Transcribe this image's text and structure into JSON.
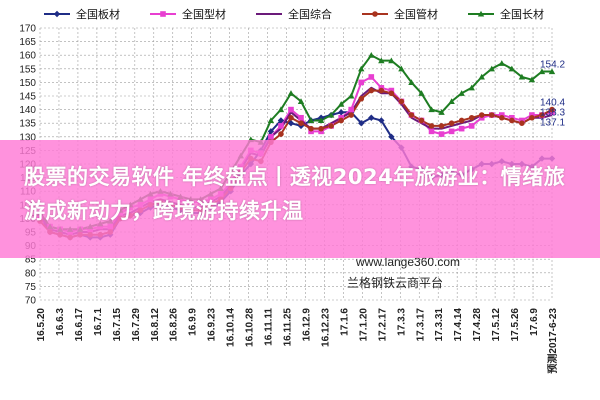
{
  "chart_data": {
    "type": "line",
    "ylim": [
      70,
      170
    ],
    "yticks": [
      70,
      75,
      80,
      85,
      90,
      95,
      100,
      105,
      110,
      115,
      120,
      125,
      130,
      135,
      140,
      145,
      150,
      155,
      160,
      165,
      170
    ],
    "grid": true,
    "legend_position": "top",
    "x_tick_labels": [
      "16.5.20",
      "16.6.3",
      "16.6.17",
      "16.7.1",
      "16.7.15",
      "16.7.29",
      "16.8.12",
      "16.8.26",
      "16.9.9",
      "16.9.23",
      "16.10.14",
      "16.10.28",
      "16.11.11",
      "16.11.25",
      "16.12.9",
      "16.12.23",
      "17.1.6",
      "17.1.20",
      "17.2.17",
      "17.3.3",
      "17.3.17",
      "17.3.31",
      "17.4.14",
      "17.4.28",
      "17.5.12",
      "17.5.26",
      "17.6.9",
      "预测2017-6-23"
    ],
    "end_labels": [
      {
        "series": "全国长材",
        "text": "154.2"
      },
      {
        "series": "全国管材",
        "text": "140.4"
      },
      {
        "series": "全国综合",
        "text": "138.3"
      },
      {
        "series": "全国型材",
        "text": "137.1"
      }
    ],
    "series": [
      {
        "name": "全国板材",
        "color": "#1f2d86",
        "marker": "diamond",
        "values": [
          101,
          95,
          94,
          93,
          94,
          93,
          93,
          94,
          100,
          101,
          102,
          104,
          105,
          104,
          103,
          102,
          102,
          104,
          106,
          110,
          116,
          120,
          125,
          132,
          136,
          135,
          134,
          136,
          137,
          138,
          139,
          139,
          135,
          137,
          136,
          130,
          126,
          119,
          118,
          115,
          116,
          117,
          116,
          118,
          120,
          120,
          121,
          120,
          120,
          119,
          122,
          122
        ]
      },
      {
        "name": "全国型材",
        "color": "#e83fd1",
        "marker": "square",
        "values": [
          100,
          97,
          96,
          95,
          96,
          96,
          97,
          97,
          102,
          104,
          105,
          107,
          109,
          108,
          107,
          106,
          106,
          107,
          109,
          113,
          119,
          125,
          124,
          130,
          134,
          140,
          137,
          132,
          132,
          134,
          137,
          140,
          150,
          152,
          148,
          147,
          143,
          138,
          136,
          132,
          131,
          132,
          133,
          134,
          137,
          138,
          138,
          137,
          136,
          138,
          138,
          139
        ]
      },
      {
        "name": "全国综合",
        "color": "#6b1a7a",
        "marker": "none",
        "values": [
          101,
          96,
          95,
          94,
          95,
          95,
          96,
          96,
          101,
          102,
          104,
          106,
          107,
          106,
          105,
          104,
          104,
          106,
          108,
          112,
          118,
          124,
          123,
          130,
          133,
          139,
          136,
          133,
          133,
          135,
          137,
          139,
          145,
          148,
          146,
          146,
          142,
          137,
          135,
          133,
          133,
          134,
          135,
          136,
          138,
          138,
          137,
          136,
          135,
          137,
          137,
          138
        ]
      },
      {
        "name": "全国管材",
        "color": "#a8331f",
        "marker": "circle",
        "values": [
          99,
          95,
          94,
          93,
          94,
          94,
          94,
          95,
          100,
          101,
          103,
          105,
          106,
          105,
          104,
          103,
          103,
          105,
          107,
          111,
          117,
          122,
          121,
          128,
          131,
          137,
          135,
          133,
          133,
          134,
          136,
          138,
          144,
          147,
          147,
          146,
          143,
          138,
          136,
          134,
          134,
          135,
          136,
          137,
          138,
          138,
          137,
          136,
          135,
          137,
          138,
          140
        ]
      },
      {
        "name": "全国长材",
        "color": "#1e7d22",
        "marker": "triangle",
        "values": [
          102,
          97,
          96,
          96,
          96,
          97,
          98,
          99,
          103,
          105,
          107,
          109,
          110,
          109,
          108,
          107,
          107,
          109,
          111,
          117,
          123,
          129,
          128,
          136,
          140,
          146,
          143,
          136,
          136,
          138,
          142,
          145,
          155,
          160,
          158,
          158,
          155,
          150,
          146,
          140,
          139,
          143,
          146,
          148,
          152,
          155,
          157,
          155,
          152,
          151,
          154,
          154
        ]
      }
    ]
  },
  "watermark": {
    "site": "www.lange360.com",
    "platform": "兰格钢铁云商平台"
  },
  "banner": {
    "text": "股票的交易软件 年终盘点丨透视2024年旅游业：情绪旅游成新动力，跨境游持续升温"
  },
  "colors": {
    "grid": "#9e9e9e",
    "banner": "#ff7ad6"
  }
}
